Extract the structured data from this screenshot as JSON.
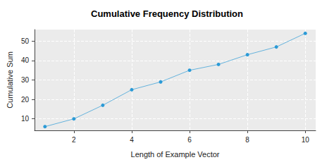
{
  "chart_data": {
    "type": "line",
    "title": "Cumulative Frequency Distribution",
    "xlabel": "Length of Example Vector",
    "ylabel": "Cumulative Sum",
    "x": [
      1,
      2,
      3,
      4,
      5,
      6,
      7,
      8,
      9,
      10
    ],
    "values": [
      6,
      10,
      17,
      25,
      29,
      35,
      38,
      43,
      47,
      54
    ],
    "color": "#2b9ad6",
    "marker": "circle",
    "xlim": [
      0.64,
      10.36
    ],
    "xticks": [
      2,
      4,
      6,
      8,
      10
    ],
    "ylim": [
      4.08,
      55.92
    ],
    "yticks": [
      10,
      20,
      30,
      40,
      50
    ],
    "grid": true
  }
}
